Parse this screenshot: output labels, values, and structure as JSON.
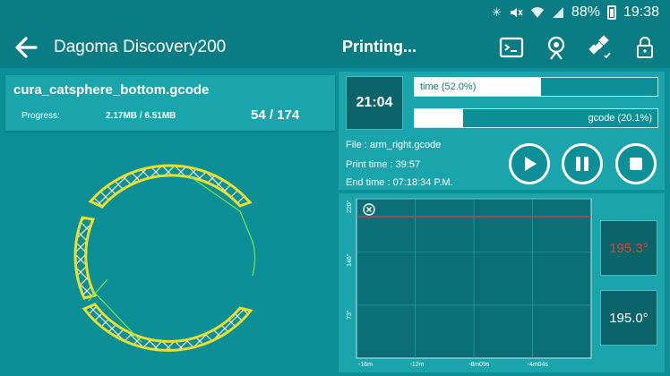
{
  "status_bar": {
    "battery": "88%",
    "time": "19:38",
    "icons": [
      "bluetooth-icon",
      "mute-icon",
      "wifi-icon",
      "signal-icon",
      "battery-icon"
    ]
  },
  "app_bar": {
    "title": "Dagoma Discovery200",
    "status": "Printing...",
    "icons": [
      "back-arrow-icon",
      "terminal-icon",
      "webcam-icon",
      "satellite-icon",
      "lock-icon"
    ]
  },
  "file_card": {
    "file_name": "cura_catsphere_bottom.gcode",
    "progress_label": "Progress:",
    "progress_size": "2.17MB / 6.51MB",
    "layers": "54 / 174"
  },
  "control": {
    "elapsed": "21:04",
    "time_bar": {
      "label": "time (52.0%)",
      "fraction": 0.52
    },
    "gcode_bar": {
      "label": "gcode (20.1%)",
      "fraction": 0.201
    },
    "file_line": "File : arm_right.gcode",
    "print_time_line": "Print time : 39:57",
    "end_time_line": "End time : 07:18:34 P.M.",
    "buttons": [
      "play-button",
      "pause-button",
      "stop-button"
    ]
  },
  "temps": {
    "target": "195.3°",
    "current": "195.0°",
    "target_color": "#e0423a",
    "current_color": "#ffffff"
  },
  "chart_data": {
    "type": "line",
    "title": "",
    "xlabel": "",
    "ylabel": "",
    "y_tick_labels": [
      "220°",
      "146°",
      "73°"
    ],
    "x_tick_labels": [
      "-16m",
      "-12m",
      "-8m09s",
      "-4m04s"
    ],
    "ylim": [
      0,
      220
    ],
    "grid": true,
    "series": [
      {
        "color": "#e0423a",
        "values": [
          195.3,
          195.3,
          195.3,
          195.3,
          195.3
        ]
      }
    ]
  },
  "colors": {
    "accent": "#0c8f96",
    "bar": "#0a7d84",
    "panel": "#1aa4ab",
    "print_path": "#e8e02c"
  }
}
